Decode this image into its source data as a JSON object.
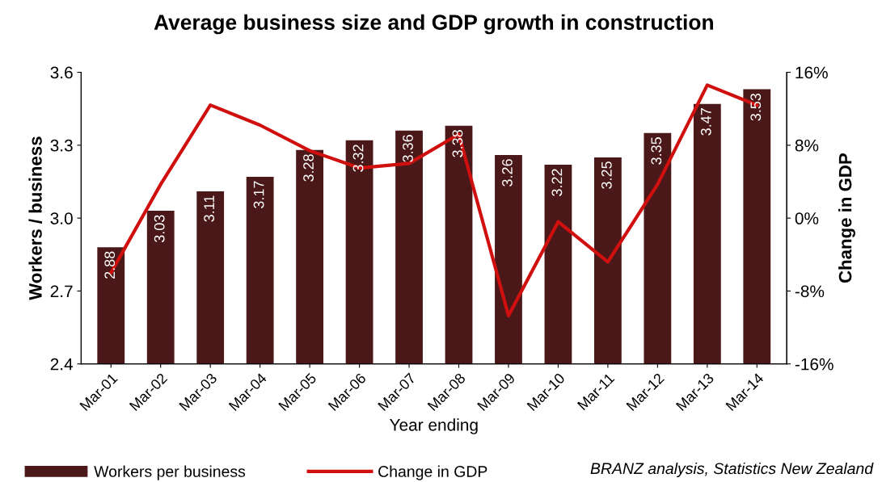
{
  "chart_data": {
    "type": "bar",
    "title": "Average business size and GDP growth in construction",
    "xlabel": "Year ending",
    "ylabel": "Workers / business",
    "y2label": "Change in GDP",
    "categories": [
      "Mar-01",
      "Mar-02",
      "Mar-03",
      "Mar-04",
      "Mar-05",
      "Mar-06",
      "Mar-07",
      "Mar-08",
      "Mar-09",
      "Mar-10",
      "Mar-11",
      "Mar-12",
      "Mar-13",
      "Mar-14"
    ],
    "series": [
      {
        "name": "Workers per business",
        "color": "#4a1818",
        "values": [
          2.88,
          3.03,
          3.11,
          3.17,
          3.28,
          3.32,
          3.36,
          3.38,
          3.26,
          3.22,
          3.25,
          3.35,
          3.47,
          3.53
        ],
        "value_labels": [
          "2.88",
          "3.03",
          "3.11",
          "3.17",
          "3.28",
          "3.32",
          "3.36",
          "3.38",
          "3.26",
          "3.22",
          "3.25",
          "3.35",
          "3.47",
          "3.53"
        ]
      },
      {
        "name": "Change in GDP",
        "type": "line",
        "axis": "y2",
        "color": "#d0100f",
        "values": [
          -6.0,
          3.7,
          12.4,
          10.2,
          7.4,
          5.5,
          6.0,
          9.2,
          -10.7,
          -0.4,
          -4.8,
          3.7,
          14.6,
          12.4
        ]
      }
    ],
    "ylim": [
      2.4,
      3.6
    ],
    "yticks": [
      {
        "value": 2.4,
        "label": "2.4"
      },
      {
        "value": 2.7,
        "label": "2.7"
      },
      {
        "value": 3.0,
        "label": "3.0"
      },
      {
        "value": 3.3,
        "label": "3.3"
      },
      {
        "value": 3.6,
        "label": "3.6"
      }
    ],
    "y2lim": [
      -16,
      16
    ],
    "y2ticks": [
      {
        "value": -16,
        "label": "-16%"
      },
      {
        "value": -8,
        "label": "-8%"
      },
      {
        "value": 0,
        "label": "0%"
      },
      {
        "value": 8,
        "label": "8%"
      },
      {
        "value": 16,
        "label": "16%"
      }
    ],
    "grid": false,
    "legend": "bottom left",
    "marker": "none",
    "line_style": "solid",
    "annotations": [
      "BRANZ analysis, Statistics New Zealand"
    ]
  }
}
